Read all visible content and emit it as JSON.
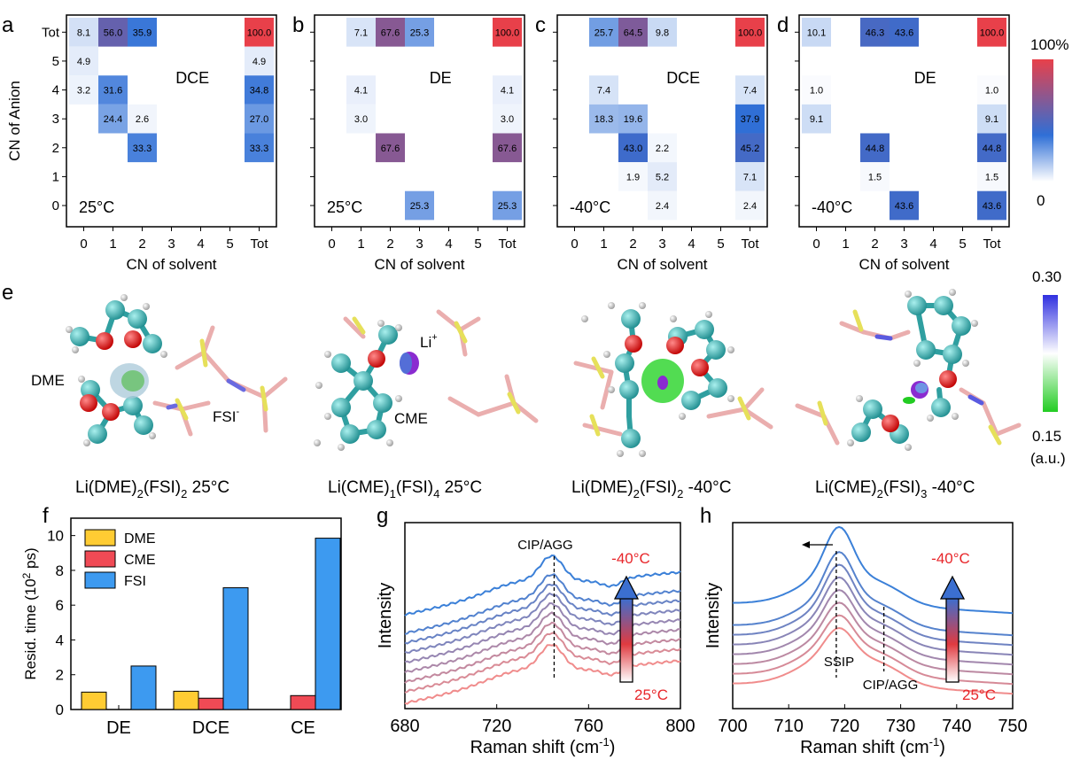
{
  "panel_labels": [
    "a",
    "b",
    "c",
    "d",
    "e",
    "f",
    "g",
    "h"
  ],
  "colors": {
    "scale_low": "#ffffff",
    "scale_mid": "#2f6fd6",
    "scale_high": "#e8404a",
    "rdg_low": "#22cc22",
    "rdg_mid": "#ffffff",
    "rdg_high": "#3030e0",
    "dme": "#ffcc33",
    "cme": "#f04a55",
    "fsi": "#3d9af0",
    "raman_low": "#f08c8c",
    "raman_high": "#3b80d8"
  },
  "heatmap_common": {
    "xlabel": "CN of solvent",
    "ylabel": "CN of Anion",
    "xticks": [
      "0",
      "1",
      "2",
      "3",
      "4",
      "5",
      "Tot"
    ],
    "yticks": [
      "0",
      "1",
      "2",
      "3",
      "4",
      "5",
      "Tot"
    ],
    "colorbar_max": "100%",
    "colorbar_min": "0"
  },
  "panel_e": {
    "colorbar_max": "0.30",
    "colorbar_min": "0.15",
    "colorbar_unit": "(a.u.)",
    "labels": {
      "dme": "DME",
      "fsi": "FSI",
      "fsi_sup": "-",
      "li": "Li",
      "li_sup": "+",
      "cme": "CME"
    },
    "captions": [
      {
        "a": "Li(DME)",
        "s1": "2",
        "b": "(FSI)",
        "s2": "2",
        "c": "  25°C"
      },
      {
        "a": "Li(CME)",
        "s1": "1",
        "b": "(FSI)",
        "s2": "4",
        "c": "  25°C"
      },
      {
        "a": "Li(DME)",
        "s1": "2",
        "b": "(FSI)",
        "s2": "2",
        "c": "  -40°C"
      },
      {
        "a": "Li(CME)",
        "s1": "2",
        "b": "(FSI)",
        "s2": "3",
        "c": "  -40°C"
      }
    ]
  },
  "panel_g_text": {
    "annotation": "CIP/AGG",
    "arrow_top": "-40°C",
    "arrow_bottom": "25°C",
    "xlabel": "Raman shift (cm",
    "xlabel_sup": "-1",
    "xlabel_end": ")",
    "ylabel": "Intensity"
  },
  "panel_h_text": {
    "annotation_left": "SSIP",
    "annotation_right": "CIP/AGG",
    "arrow_top": "-40°C",
    "arrow_bottom": "25°C",
    "xlabel": "Raman shift (cm",
    "xlabel_sup": "-1",
    "xlabel_end": ")",
    "ylabel": "Intensity"
  },
  "chart_data": [
    {
      "panel": "a",
      "type": "heatmap",
      "solvent": "DCE",
      "temperature": "25°C",
      "cells": [
        {
          "x": "0",
          "y": "Tot",
          "value": 8.1
        },
        {
          "x": "1",
          "y": "Tot",
          "value": 56.0
        },
        {
          "x": "2",
          "y": "Tot",
          "value": 35.9
        },
        {
          "x": "Tot",
          "y": "Tot",
          "value": 100.0
        },
        {
          "x": "0",
          "y": "5",
          "value": 4.9
        },
        {
          "x": "Tot",
          "y": "5",
          "value": 4.9
        },
        {
          "x": "0",
          "y": "4",
          "value": 3.2
        },
        {
          "x": "1",
          "y": "4",
          "value": 31.6
        },
        {
          "x": "Tot",
          "y": "4",
          "value": 34.8
        },
        {
          "x": "1",
          "y": "3",
          "value": 24.4
        },
        {
          "x": "2",
          "y": "3",
          "value": 2.6
        },
        {
          "x": "Tot",
          "y": "3",
          "value": 27.0
        },
        {
          "x": "2",
          "y": "2",
          "value": 33.3
        },
        {
          "x": "Tot",
          "y": "2",
          "value": 33.3
        }
      ]
    },
    {
      "panel": "b",
      "type": "heatmap",
      "solvent": "DE",
      "temperature": "25°C",
      "cells": [
        {
          "x": "1",
          "y": "Tot",
          "value": 7.1
        },
        {
          "x": "2",
          "y": "Tot",
          "value": 67.6
        },
        {
          "x": "3",
          "y": "Tot",
          "value": 25.3
        },
        {
          "x": "Tot",
          "y": "Tot",
          "value": 100.0
        },
        {
          "x": "1",
          "y": "4",
          "value": 4.1
        },
        {
          "x": "Tot",
          "y": "4",
          "value": 4.1
        },
        {
          "x": "1",
          "y": "3",
          "value": 3.0
        },
        {
          "x": "Tot",
          "y": "3",
          "value": 3.0
        },
        {
          "x": "2",
          "y": "2",
          "value": 67.6
        },
        {
          "x": "Tot",
          "y": "2",
          "value": 67.6
        },
        {
          "x": "3",
          "y": "0",
          "value": 25.3
        },
        {
          "x": "Tot",
          "y": "0",
          "value": 25.3
        }
      ]
    },
    {
      "panel": "c",
      "type": "heatmap",
      "solvent": "DCE",
      "temperature": "-40°C",
      "cells": [
        {
          "x": "1",
          "y": "Tot",
          "value": 25.7
        },
        {
          "x": "2",
          "y": "Tot",
          "value": 64.5
        },
        {
          "x": "3",
          "y": "Tot",
          "value": 9.8
        },
        {
          "x": "Tot",
          "y": "Tot",
          "value": 100.0
        },
        {
          "x": "1",
          "y": "4",
          "value": 7.4
        },
        {
          "x": "Tot",
          "y": "4",
          "value": 7.4
        },
        {
          "x": "1",
          "y": "3",
          "value": 18.3
        },
        {
          "x": "2",
          "y": "3",
          "value": 19.6
        },
        {
          "x": "Tot",
          "y": "3",
          "value": 37.9
        },
        {
          "x": "2",
          "y": "2",
          "value": 43.0
        },
        {
          "x": "3",
          "y": "2",
          "value": 2.2
        },
        {
          "x": "Tot",
          "y": "2",
          "value": 45.2
        },
        {
          "x": "2",
          "y": "1",
          "value": 1.9
        },
        {
          "x": "3",
          "y": "1",
          "value": 5.2
        },
        {
          "x": "Tot",
          "y": "1",
          "value": 7.1
        },
        {
          "x": "3",
          "y": "0",
          "value": 2.4
        },
        {
          "x": "Tot",
          "y": "0",
          "value": 2.4
        }
      ]
    },
    {
      "panel": "d",
      "type": "heatmap",
      "solvent": "DE",
      "temperature": "-40°C",
      "cells": [
        {
          "x": "0",
          "y": "Tot",
          "value": 10.1
        },
        {
          "x": "2",
          "y": "Tot",
          "value": 46.3
        },
        {
          "x": "3",
          "y": "Tot",
          "value": 43.6
        },
        {
          "x": "Tot",
          "y": "Tot",
          "value": 100.0
        },
        {
          "x": "0",
          "y": "4",
          "value": 1.0
        },
        {
          "x": "Tot",
          "y": "4",
          "value": 1.0
        },
        {
          "x": "0",
          "y": "3",
          "value": 9.1
        },
        {
          "x": "Tot",
          "y": "3",
          "value": 9.1
        },
        {
          "x": "2",
          "y": "2",
          "value": 44.8
        },
        {
          "x": "Tot",
          "y": "2",
          "value": 44.8
        },
        {
          "x": "2",
          "y": "1",
          "value": 1.5
        },
        {
          "x": "Tot",
          "y": "1",
          "value": 1.5
        },
        {
          "x": "3",
          "y": "0",
          "value": 43.6
        },
        {
          "x": "Tot",
          "y": "0",
          "value": 43.6
        }
      ]
    },
    {
      "panel": "f",
      "type": "bar",
      "categories": [
        "DE",
        "DCE",
        "CE"
      ],
      "series": [
        {
          "name": "DME",
          "values": [
            1.0,
            1.05,
            null
          ]
        },
        {
          "name": "CME",
          "values": [
            null,
            0.65,
            0.8
          ]
        },
        {
          "name": "FSI",
          "values": [
            2.5,
            7.0,
            9.85
          ]
        }
      ],
      "ylabel": "Resid. time (10",
      "ylabel_sup": "2",
      "ylabel_end": " ps)",
      "ylim": [
        0,
        11
      ],
      "yticks": [
        0,
        2,
        4,
        6,
        8,
        10
      ],
      "legend": "top-left"
    },
    {
      "panel": "g",
      "type": "line",
      "xlim": [
        680,
        800
      ],
      "xticks": [
        680,
        720,
        760,
        800
      ],
      "xlabel": "Raman shift (cm-1)",
      "ylabel": "Intensity",
      "peak_marker": 745,
      "curves": 9,
      "peak_cm": 744
    },
    {
      "panel": "h",
      "type": "line",
      "xlim": [
        700,
        750
      ],
      "xticks": [
        700,
        710,
        720,
        730,
        740,
        750
      ],
      "xlabel": "Raman shift (cm-1)",
      "ylabel": "Intensity",
      "markers": [
        718.5,
        727
      ],
      "curves": 8,
      "peak_cm": 719
    }
  ]
}
